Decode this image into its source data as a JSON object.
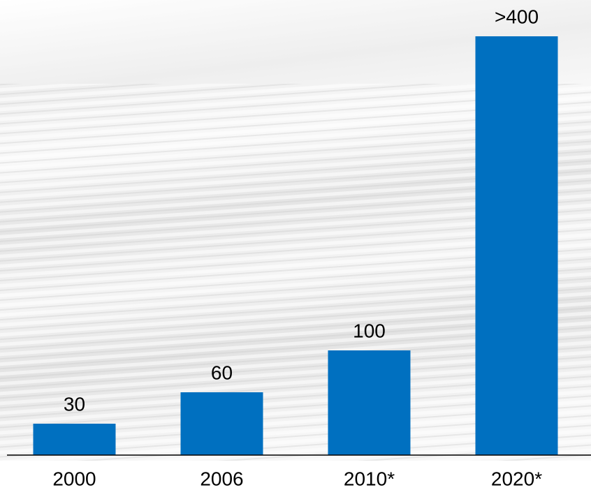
{
  "chart_data": {
    "type": "bar",
    "categories": [
      "2000",
      "2006",
      "2010*",
      "2020*"
    ],
    "values": [
      30,
      60,
      100,
      400
    ],
    "value_labels": [
      "30",
      "60",
      "100",
      ">400"
    ],
    "color": "#0070c0"
  }
}
